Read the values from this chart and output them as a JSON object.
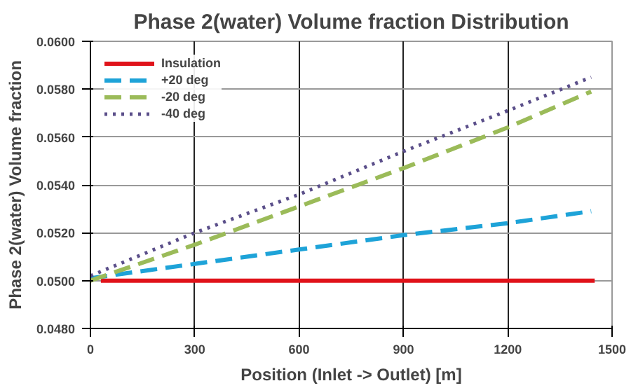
{
  "chart_data": {
    "type": "line",
    "title": "Phase 2(water) Volume fraction Distribution",
    "xlabel": "Position (Inlet -> Outlet) [m]",
    "ylabel": "Phase 2(water) Volume fraction",
    "xlim": [
      0,
      1500
    ],
    "xticks": [
      0,
      300,
      600,
      900,
      1200,
      1500
    ],
    "ylim": [
      0.048,
      0.06
    ],
    "yticks": [
      {
        "value": 0.048,
        "label": "0.0480"
      },
      {
        "value": 0.05,
        "label": "0.0500"
      },
      {
        "value": 0.052,
        "label": "0.0520"
      },
      {
        "value": 0.054,
        "label": "0.0540"
      },
      {
        "value": 0.056,
        "label": "0.0560"
      },
      {
        "value": 0.058,
        "label": "0.0580"
      },
      {
        "value": 0.06,
        "label": "0.0600"
      }
    ],
    "grid": true,
    "legend": "top left",
    "marker": "none",
    "series": [
      {
        "name": "Insulation",
        "color": "#e0131a",
        "line_style": "solid",
        "x": [
          30,
          300,
          600,
          900,
          1200,
          1450
        ],
        "values": [
          0.05,
          0.05,
          0.05,
          0.05,
          0.05,
          0.05
        ]
      },
      {
        "name": "+20 deg",
        "color": "#1ea3d8",
        "line_style": "dashed",
        "x": [
          0,
          300,
          600,
          900,
          1200,
          1440
        ],
        "values": [
          0.0501,
          0.0507,
          0.0513,
          0.0519,
          0.0524,
          0.0529
        ]
      },
      {
        "name": "-20 deg",
        "color": "#9bbb59",
        "line_style": "dashed",
        "x": [
          0,
          300,
          600,
          900,
          1200,
          1440
        ],
        "values": [
          0.05,
          0.0515,
          0.0531,
          0.0547,
          0.0564,
          0.0579
        ]
      },
      {
        "name": "-40 deg",
        "color": "#5b4f8a",
        "line_style": "dotted",
        "x": [
          0,
          300,
          600,
          900,
          1200,
          1440
        ],
        "values": [
          0.0502,
          0.052,
          0.0536,
          0.0554,
          0.0571,
          0.0585
        ]
      }
    ]
  }
}
